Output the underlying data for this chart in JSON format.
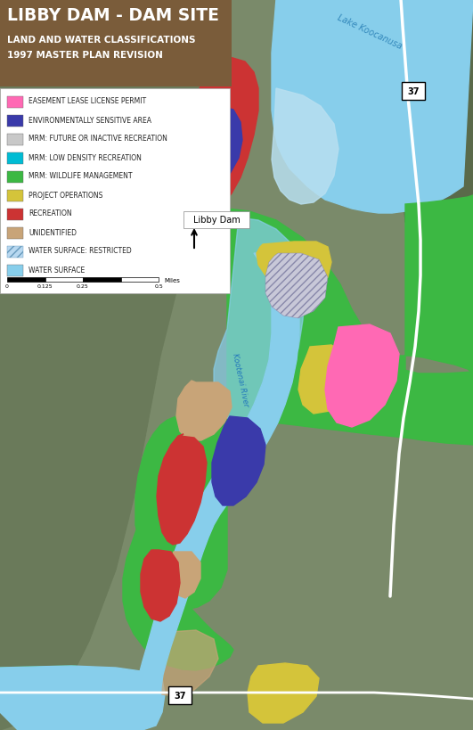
{
  "title_line1": "LIBBY DAM - DAM SITE",
  "title_line2": "LAND AND WATER CLASSIFICATIONS",
  "title_line3": "1997 MASTER PLAN REVISION",
  "title_bg_color": "#7a5c3a",
  "title_text_color": "#ffffff",
  "legend_items": [
    {
      "label": "EASEMENT LEASE LICENSE PERMIT",
      "color": "#ff69b4",
      "hatch": null
    },
    {
      "label": "ENVIRONMENTALLY SENSITIVE AREA",
      "color": "#3a3aaa",
      "hatch": null
    },
    {
      "label": "MRM: FUTURE OR INACTIVE RECREATION",
      "color": "#c8c8c8",
      "hatch": null
    },
    {
      "label": "MRM: LOW DENSITY RECREATION",
      "color": "#00bcd4",
      "hatch": null
    },
    {
      "label": "MRM: WILDLIFE MANAGEMENT",
      "color": "#3cb843",
      "hatch": null
    },
    {
      "label": "PROJECT OPERATIONS",
      "color": "#d4c43a",
      "hatch": null
    },
    {
      "label": "RECREATION",
      "color": "#cc3333",
      "hatch": null
    },
    {
      "label": "UNIDENTIFIED",
      "color": "#c8a478",
      "hatch": null
    },
    {
      "label": "WATER SURFACE: RESTRICTED",
      "color": "#b8d8f0",
      "hatch": "////"
    },
    {
      "label": "WATER SURFACE",
      "color": "#87ceeb",
      "hatch": null
    }
  ],
  "map_bg_color": "#7a8a6a",
  "figsize": [
    5.31,
    8.2
  ],
  "dpi": 100,
  "label_libby_dam": "Libby Dam",
  "label_lake": "Lake Koocanusa",
  "label_river": "Kootenai River",
  "label_37_top": "37",
  "label_37_bottom": "37"
}
